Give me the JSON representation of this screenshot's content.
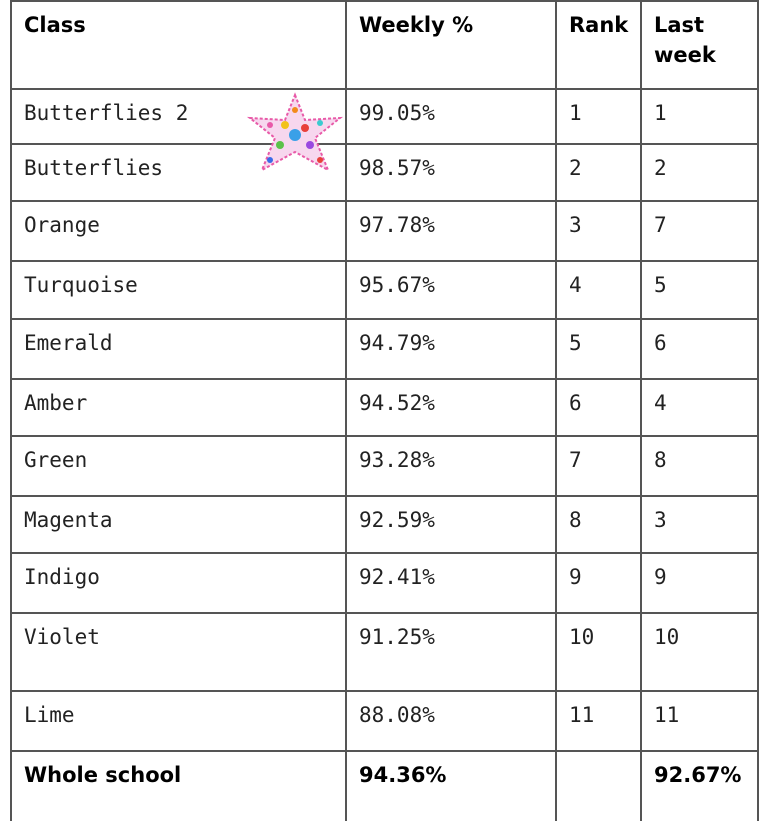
{
  "table": {
    "header": [
      "Class",
      "Weekly %",
      "Rank",
      "Last week"
    ],
    "rows": [
      [
        "Butterflies 2",
        "99.05%",
        "1",
        "1"
      ],
      [
        "Butterflies",
        "98.57%",
        "2",
        "2"
      ],
      [
        "Orange",
        "97.78%",
        "3",
        "7"
      ],
      [
        "Turquoise",
        "95.67%",
        "4",
        "5"
      ],
      [
        "Emerald",
        "94.79%",
        "5",
        "6"
      ],
      [
        "Amber",
        "94.52%",
        "6",
        "4"
      ],
      [
        "Green",
        "93.28%",
        "7",
        "8"
      ],
      [
        "Magenta",
        "92.59%",
        "8",
        "3"
      ],
      [
        "Indigo",
        "92.41%",
        "9",
        "9"
      ],
      [
        "Violet",
        "91.25%",
        "10",
        "10"
      ],
      [
        "Lime",
        "88.08%",
        "11",
        "11"
      ]
    ],
    "total": [
      "Whole school",
      "94.36%",
      null,
      "92.67%"
    ]
  }
}
